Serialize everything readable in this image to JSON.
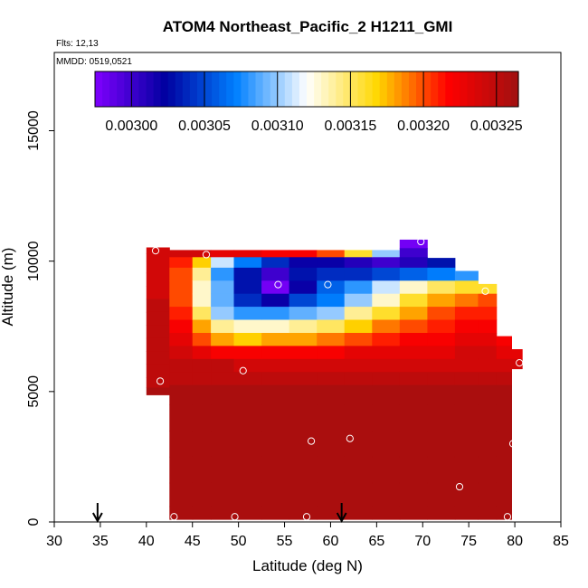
{
  "chart_data": {
    "type": "heatmap",
    "title": "ATOM4 Northeast_Pacific_2 H1211_GMI",
    "annotations": {
      "flights": "Flts: 12,13",
      "dates": "MMDD: 0519,0521"
    },
    "xlabel": "Latitude (deg N)",
    "ylabel": "Altitude (m)",
    "xlim": [
      30,
      85
    ],
    "ylim": [
      0,
      18000
    ],
    "x_ticks": [
      30,
      35,
      40,
      45,
      50,
      55,
      60,
      65,
      70,
      75,
      80,
      85
    ],
    "y_ticks": [
      0,
      5000,
      10000,
      15000
    ],
    "grid": false,
    "legend": "colorbar-top",
    "colorbar": {
      "vmin": 0.002975,
      "vmax": 0.003265,
      "ticks": [
        0.003,
        0.00305,
        0.0031,
        0.00315,
        0.0032,
        0.00325
      ],
      "tick_labels": [
        "0.00300",
        "0.00305",
        "0.00310",
        "0.00315",
        "0.00320",
        "0.00325"
      ],
      "colors": [
        "#8000ff",
        "#0000a0",
        "#0080ff",
        "#ffffff",
        "#ffd700",
        "#ff0000",
        "#a01010"
      ]
    },
    "profiles": [
      {
        "lat": 41.0,
        "alt": [
          10400,
          10200,
          9800,
          9300,
          8800,
          8300,
          7800,
          7300,
          6800,
          6300,
          5800,
          5300,
          5000
        ],
        "val": [
          0.00324,
          0.00324,
          0.00324,
          0.00324,
          0.00324,
          0.00325,
          0.00325,
          0.00325,
          0.00325,
          0.00325,
          0.00325,
          0.00325,
          0.00326
        ]
      },
      {
        "lat": 44.0,
        "alt": [
          10300,
          10000,
          9500,
          9000,
          8500,
          8000,
          7500,
          7000,
          6500,
          6000,
          5500,
          5000,
          4000,
          3000,
          2000,
          1000,
          200
        ],
        "val": [
          0.00324,
          0.00321,
          0.0032,
          0.0032,
          0.0032,
          0.00321,
          0.00322,
          0.00323,
          0.00324,
          0.00325,
          0.00325,
          0.00326,
          0.00326,
          0.00326,
          0.00326,
          0.00326,
          0.00326
        ]
      },
      {
        "lat": 46.0,
        "alt": [
          10300,
          10000,
          9500,
          9000,
          8500,
          8000,
          7500,
          7000,
          6500,
          6000,
          5500,
          5000,
          4000,
          3000,
          2000,
          1000,
          200
        ],
        "val": [
          0.00324,
          0.00317,
          0.00314,
          0.00313,
          0.00313,
          0.00315,
          0.00318,
          0.0032,
          0.00323,
          0.00325,
          0.00325,
          0.00326,
          0.00326,
          0.00326,
          0.00326,
          0.00326,
          0.00326
        ]
      },
      {
        "lat": 48.0,
        "alt": [
          10300,
          10000,
          9500,
          9000,
          8500,
          8000,
          7500,
          7000,
          6500,
          6000,
          5500,
          5000,
          4000,
          3000,
          2000,
          1000,
          200
        ],
        "val": [
          0.00323,
          0.00311,
          0.00308,
          0.00309,
          0.00309,
          0.0031,
          0.00314,
          0.00318,
          0.00322,
          0.00325,
          0.00325,
          0.00326,
          0.00326,
          0.00326,
          0.00326,
          0.00326,
          0.00326
        ]
      },
      {
        "lat": 51.0,
        "alt": [
          10300,
          10000,
          9500,
          9000,
          8500,
          8000,
          7500,
          7000,
          6500,
          6000,
          5500,
          5000,
          4000,
          3000,
          2000,
          1000,
          200
        ],
        "val": [
          0.00323,
          0.00307,
          0.00303,
          0.00303,
          0.00304,
          0.00308,
          0.00313,
          0.00317,
          0.00322,
          0.00324,
          0.00325,
          0.00326,
          0.00326,
          0.00326,
          0.00326,
          0.00326,
          0.00326
        ]
      },
      {
        "lat": 54.0,
        "alt": [
          10300,
          10000,
          9500,
          9000,
          8500,
          8000,
          7500,
          7000,
          6500,
          6000,
          5500,
          5000,
          4000,
          3000,
          2000,
          1000,
          200
        ],
        "val": [
          0.00322,
          0.00304,
          0.003,
          0.00298,
          0.00302,
          0.00308,
          0.00313,
          0.00318,
          0.00322,
          0.00324,
          0.00325,
          0.00326,
          0.00326,
          0.00326,
          0.00326,
          0.00326,
          0.00326
        ]
      },
      {
        "lat": 57.0,
        "alt": [
          10300,
          10000,
          9500,
          9000,
          8500,
          8000,
          7500,
          7000,
          6500,
          6000,
          5500,
          5000,
          4000,
          3000,
          2000,
          1000,
          200
        ],
        "val": [
          0.00322,
          0.00302,
          0.00303,
          0.00302,
          0.00305,
          0.00309,
          0.00314,
          0.00318,
          0.00322,
          0.00324,
          0.00325,
          0.00326,
          0.00326,
          0.00326,
          0.00326,
          0.00326,
          0.00326
        ]
      },
      {
        "lat": 60.0,
        "alt": [
          10300,
          10000,
          9500,
          9000,
          8500,
          8000,
          7500,
          7000,
          6500,
          6000,
          5500,
          5000,
          4000,
          3000,
          2000,
          1000,
          200
        ],
        "val": [
          0.0032,
          0.00302,
          0.00304,
          0.00306,
          0.00307,
          0.0031,
          0.00315,
          0.00319,
          0.00322,
          0.00324,
          0.00325,
          0.00326,
          0.00326,
          0.00326,
          0.00326,
          0.00326,
          0.00326
        ]
      },
      {
        "lat": 63.0,
        "alt": [
          10300,
          10000,
          9500,
          9000,
          8500,
          8000,
          7500,
          7000,
          6500,
          6000,
          5500,
          5000,
          4000,
          3000,
          2000,
          1000,
          200
        ],
        "val": [
          0.00316,
          0.00301,
          0.00304,
          0.00308,
          0.0031,
          0.00314,
          0.00317,
          0.0032,
          0.00323,
          0.00324,
          0.00325,
          0.00326,
          0.00326,
          0.00326,
          0.00326,
          0.00326,
          0.00326
        ]
      },
      {
        "lat": 66.0,
        "alt": [
          10300,
          10000,
          9500,
          9000,
          8500,
          8000,
          7500,
          7000,
          6500,
          6000,
          5500,
          5000,
          4000,
          3000,
          2000,
          1000,
          200
        ],
        "val": [
          0.0031,
          0.003,
          0.00305,
          0.00311,
          0.00313,
          0.00316,
          0.00319,
          0.00321,
          0.00323,
          0.00324,
          0.00325,
          0.00326,
          0.00326,
          0.00326,
          0.00326,
          0.00326,
          0.00326
        ]
      },
      {
        "lat": 69.0,
        "alt": [
          10700,
          10300,
          10000,
          9500,
          9000,
          8500,
          8000,
          7500,
          7000,
          6500,
          6000,
          5500,
          5000,
          4000,
          3000,
          2000,
          1000,
          200
        ],
        "val": [
          0.00298,
          0.003,
          0.00301,
          0.00306,
          0.00313,
          0.00316,
          0.00318,
          0.0032,
          0.00322,
          0.00323,
          0.00324,
          0.00325,
          0.00326,
          0.00326,
          0.00326,
          0.00326,
          0.00326,
          0.00326
        ]
      },
      {
        "lat": 72.0,
        "alt": [
          10000,
          9500,
          9000,
          8500,
          8000,
          7500,
          7000,
          6500,
          6000,
          5500,
          5000,
          4000,
          3000,
          2000,
          1000,
          200
        ],
        "val": [
          0.00303,
          0.00307,
          0.00315,
          0.00318,
          0.0032,
          0.00321,
          0.00322,
          0.00323,
          0.00324,
          0.00325,
          0.00326,
          0.00326,
          0.00326,
          0.00326,
          0.00326,
          0.00326
        ]
      },
      {
        "lat": 75.0,
        "alt": [
          9500,
          9000,
          8500,
          8000,
          7500,
          7000,
          6500,
          6000,
          5500,
          5000,
          4000,
          3000,
          2000,
          1000,
          200
        ],
        "val": [
          0.00308,
          0.00316,
          0.00319,
          0.00321,
          0.00322,
          0.00323,
          0.00324,
          0.00324,
          0.00325,
          0.00326,
          0.00326,
          0.00326,
          0.00326,
          0.00326,
          0.00326
        ]
      },
      {
        "lat": 77.0,
        "alt": [
          9000,
          8500,
          8000,
          7500,
          7000,
          6500,
          6000,
          5500,
          5000,
          4000,
          3000,
          2000,
          1000,
          200
        ],
        "val": [
          0.00316,
          0.0032,
          0.00321,
          0.00322,
          0.00323,
          0.00324,
          0.00324,
          0.00325,
          0.00326,
          0.00326,
          0.00326,
          0.00326,
          0.00326,
          0.00326
        ]
      },
      {
        "lat": 79.0,
        "alt": [
          7000,
          6500,
          6000,
          5500,
          5000,
          4000,
          3000,
          2000,
          1000,
          200
        ],
        "val": [
          0.00322,
          0.00323,
          0.00324,
          0.00325,
          0.00326,
          0.00326,
          0.00326,
          0.00326,
          0.00326,
          0.00326
        ]
      },
      {
        "lat": 80.3,
        "alt": [
          6500,
          6000
        ],
        "val": [
          0.00323,
          0.00324
        ]
      }
    ],
    "sample_points": [
      {
        "lat": 41.0,
        "alt": 10400
      },
      {
        "lat": 46.5,
        "alt": 10250
      },
      {
        "lat": 54.3,
        "alt": 9100
      },
      {
        "lat": 59.7,
        "alt": 9100
      },
      {
        "lat": 69.8,
        "alt": 10750
      },
      {
        "lat": 76.8,
        "alt": 8850
      },
      {
        "lat": 50.5,
        "alt": 5800
      },
      {
        "lat": 41.5,
        "alt": 5400
      },
      {
        "lat": 80.5,
        "alt": 6100
      },
      {
        "lat": 57.9,
        "alt": 3100
      },
      {
        "lat": 62.1,
        "alt": 3200
      },
      {
        "lat": 79.8,
        "alt": 3000
      },
      {
        "lat": 74.0,
        "alt": 1350
      },
      {
        "lat": 43.0,
        "alt": 200
      },
      {
        "lat": 49.6,
        "alt": 200
      },
      {
        "lat": 57.4,
        "alt": 200
      },
      {
        "lat": 79.2,
        "alt": 200
      }
    ],
    "arrows": [
      {
        "lat": 34.7
      },
      {
        "lat": 61.2
      }
    ]
  }
}
